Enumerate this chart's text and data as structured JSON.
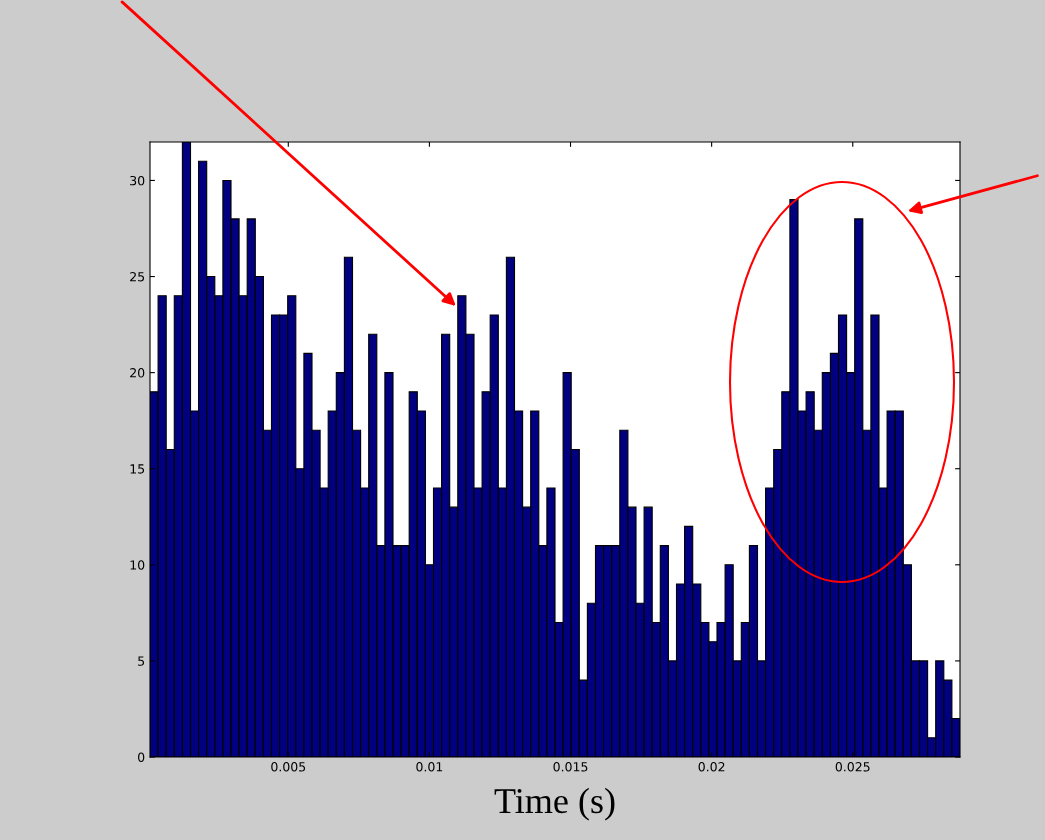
{
  "chart_data": {
    "type": "histogram",
    "xlabel": "Time (s)",
    "bins": [
      0.0001,
      0.000387,
      0.000674,
      0.000961,
      0.001248,
      0.001535,
      0.001822,
      0.002109,
      0.002396,
      0.002683,
      0.00297,
      0.003257,
      0.003544,
      0.003831,
      0.004118,
      0.004405,
      0.004692,
      0.004979,
      0.005266,
      0.005553,
      0.00584,
      0.006127,
      0.006414,
      0.006701,
      0.006988,
      0.007275,
      0.007562,
      0.007849,
      0.008136,
      0.008423,
      0.00871,
      0.008997,
      0.009284,
      0.009571,
      0.009858,
      0.010145,
      0.010432,
      0.010719,
      0.011006,
      0.011293,
      0.01158,
      0.011867,
      0.012154,
      0.012441,
      0.012728,
      0.013015,
      0.013302,
      0.013589,
      0.013876,
      0.014163,
      0.01445,
      0.014737,
      0.015024,
      0.015311,
      0.015598,
      0.015885,
      0.016172,
      0.016459,
      0.016746,
      0.017033,
      0.01732,
      0.017607,
      0.017894,
      0.018181,
      0.018468,
      0.018755,
      0.019042,
      0.019329,
      0.019616,
      0.019903,
      0.02019,
      0.020477,
      0.020764,
      0.021051,
      0.021338,
      0.021625,
      0.021912,
      0.022199,
      0.022486,
      0.022773,
      0.02306,
      0.023347,
      0.023634,
      0.023921,
      0.024208,
      0.024495,
      0.024782,
      0.025069,
      0.025356,
      0.025643,
      0.02593,
      0.026217,
      0.026504,
      0.026791,
      0.027078,
      0.027365,
      0.027652,
      0.027939,
      0.028226,
      0.028513,
      0.0288
    ],
    "values": [
      19,
      24,
      16,
      24,
      32,
      18,
      31,
      25,
      24,
      30,
      28,
      24,
      28,
      25,
      17,
      23,
      23,
      24,
      15,
      21,
      17,
      14,
      18,
      20,
      26,
      17,
      14,
      22,
      11,
      20,
      11,
      11,
      19,
      18,
      10,
      14,
      22,
      13,
      24,
      22,
      14,
      19,
      23,
      14,
      26,
      18,
      13,
      18,
      11,
      14,
      7,
      20,
      16,
      4,
      8,
      11,
      11,
      11,
      17,
      13,
      8,
      13,
      7,
      11,
      5,
      9,
      12,
      9,
      7,
      6,
      7,
      10,
      5,
      7,
      11,
      5,
      14,
      16,
      19,
      29,
      18,
      19,
      17,
      20,
      21,
      23,
      20,
      28,
      17,
      23,
      14,
      18,
      18,
      10,
      5,
      5,
      1,
      5,
      4,
      2
    ],
    "color": "#000080",
    "xlim": [
      0.0001,
      0.0288
    ],
    "xticks": [
      0.005,
      0.01,
      0.015,
      0.02,
      0.025
    ],
    "ylim": [
      0,
      32
    ],
    "yticks": [
      0,
      5,
      10,
      15,
      20,
      25,
      30
    ],
    "grid": false
  }
}
